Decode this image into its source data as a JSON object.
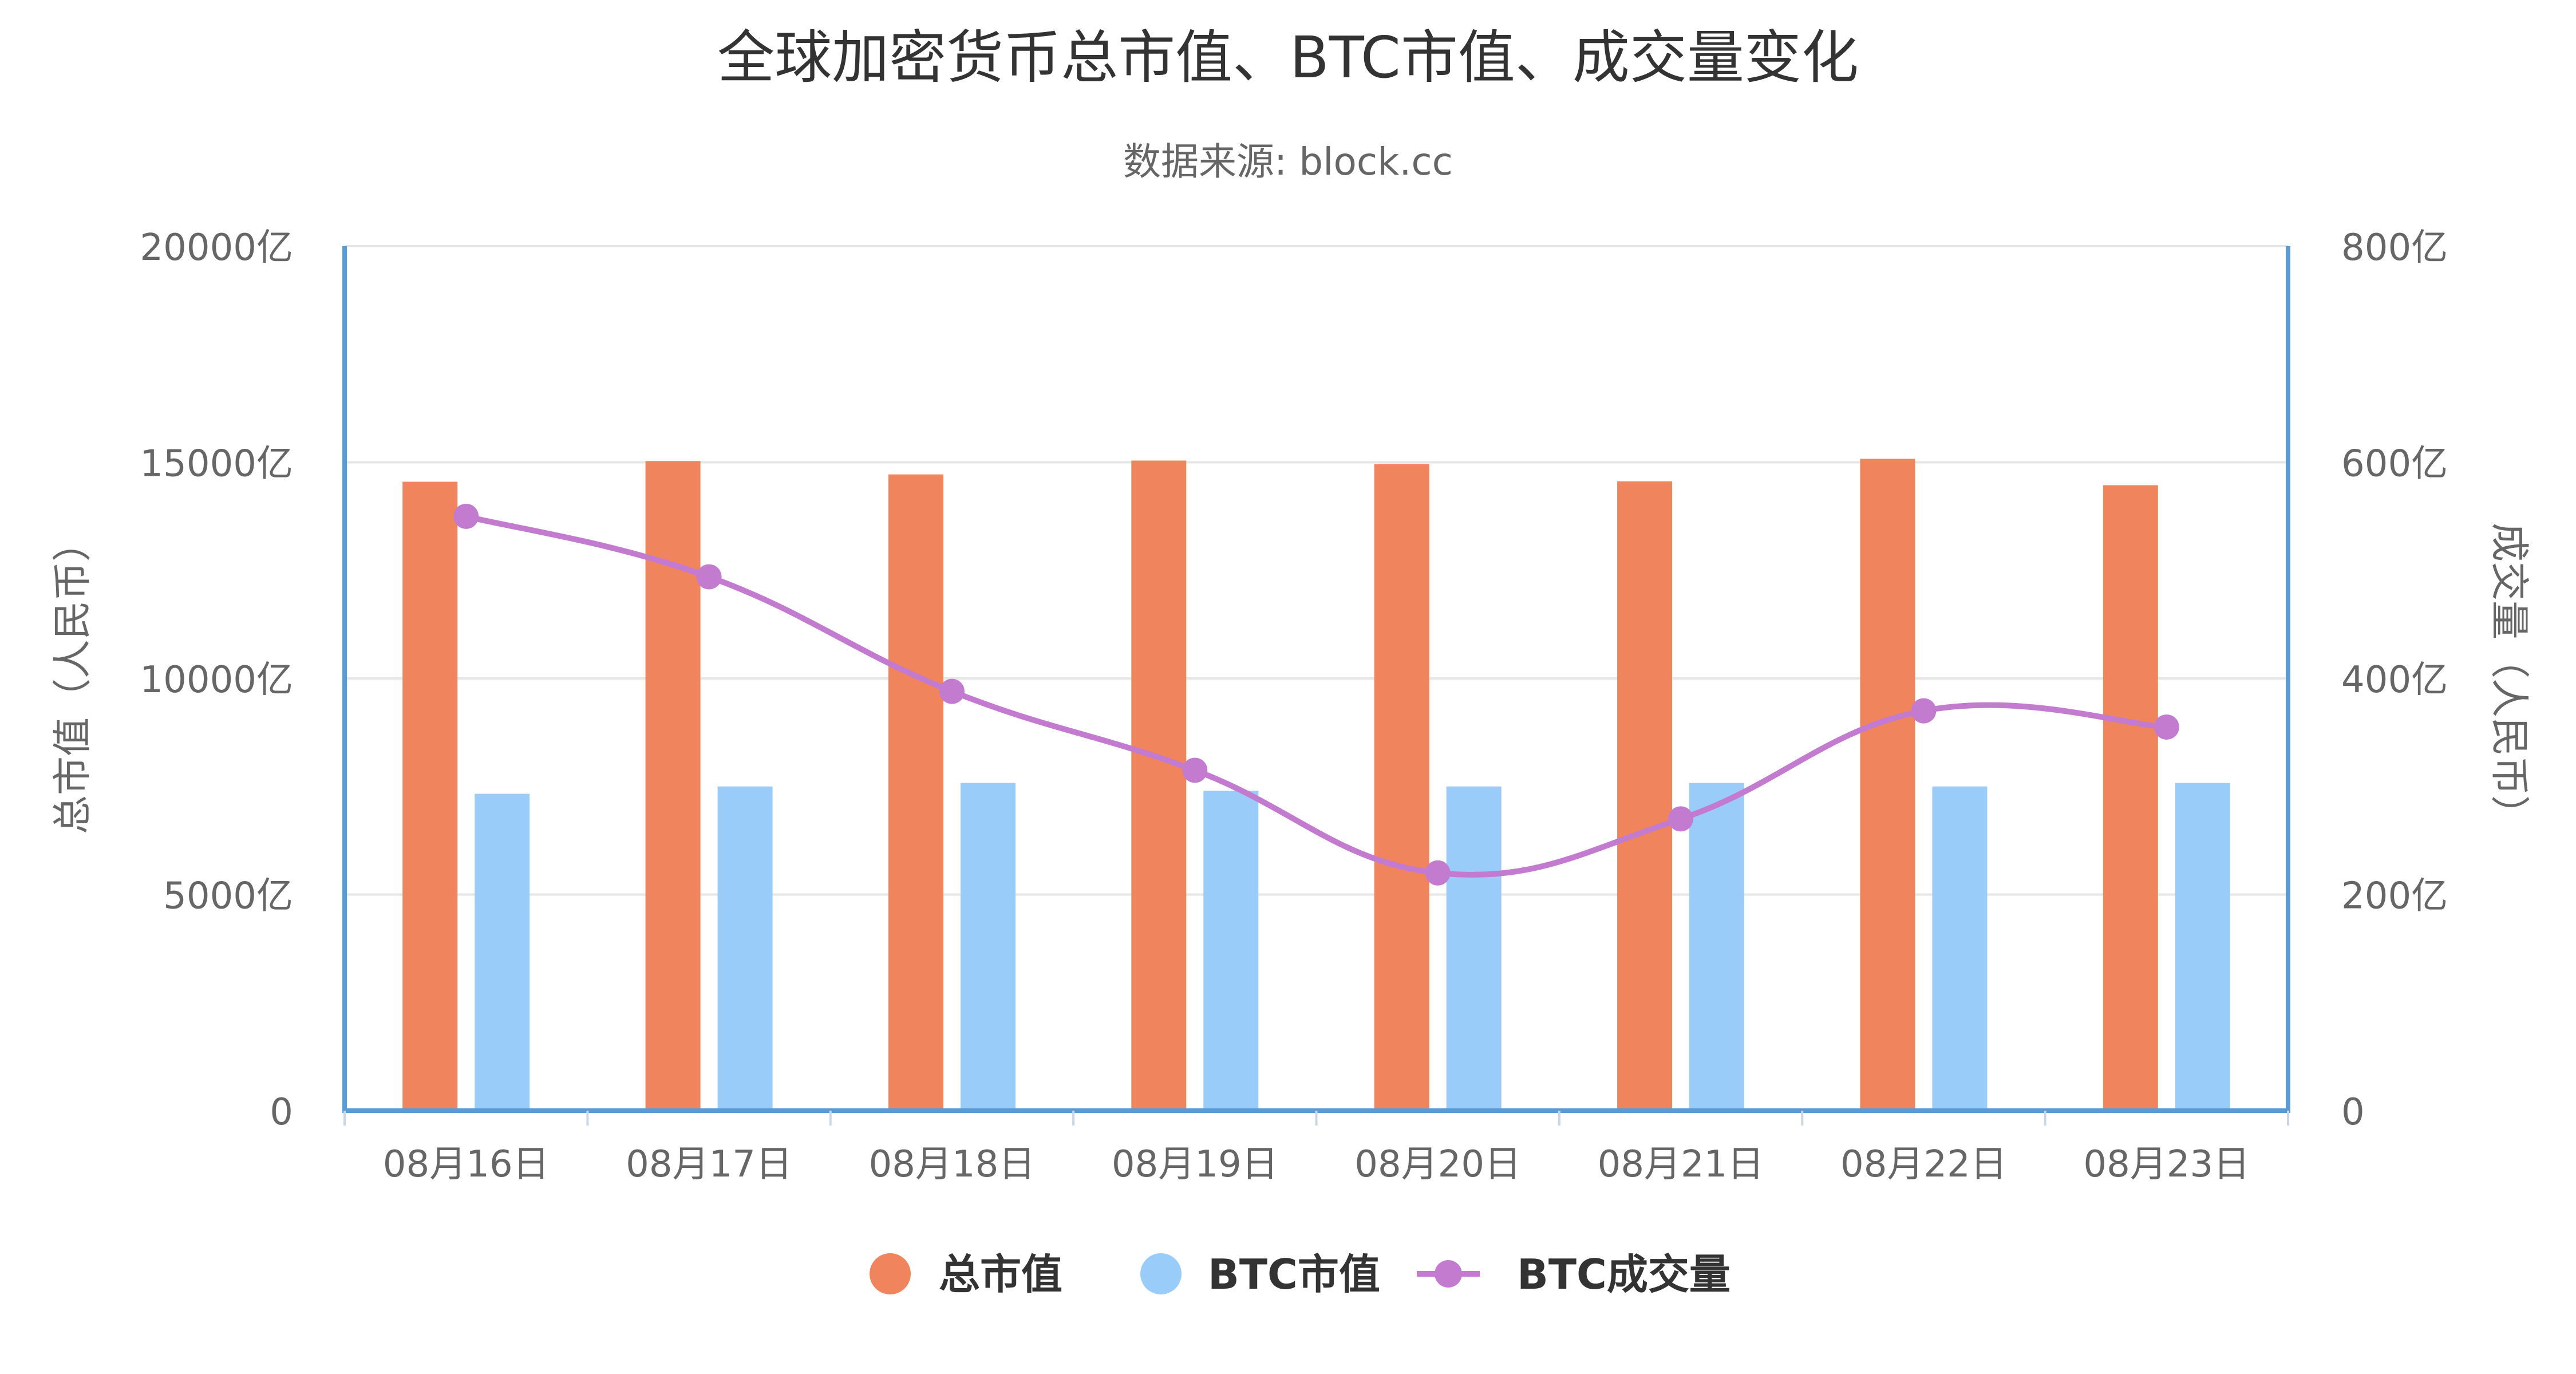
{
  "chart_data": {
    "type": "bar",
    "title": "全球加密货币总市值、BTC市值、成交量变化",
    "subtitle": "数据来源: block.cc",
    "categories": [
      "08月16日",
      "08月17日",
      "08月18日",
      "08月19日",
      "08月20日",
      "08月21日",
      "08月22日",
      "08月23日"
    ],
    "y_left": {
      "label": "总市值（人民币）",
      "ticks": [
        "0",
        "5000亿",
        "10000亿",
        "15000亿",
        "20000亿"
      ],
      "range": [
        0,
        20000
      ]
    },
    "y_right": {
      "label": "成交量（人民币）",
      "ticks": [
        "0",
        "200亿",
        "400亿",
        "600亿",
        "800亿"
      ],
      "range": [
        0,
        800
      ]
    },
    "series": [
      {
        "name": "总市值",
        "type": "bar",
        "axis": "left",
        "color": "#f0845c",
        "values": [
          14550,
          15030,
          14720,
          15040,
          14960,
          14560,
          15080,
          14470
        ]
      },
      {
        "name": "BTC市值",
        "type": "bar",
        "axis": "left",
        "color": "#99ccf8",
        "values": [
          7330,
          7500,
          7580,
          7400,
          7500,
          7580,
          7500,
          7580
        ]
      },
      {
        "name": "BTC成交量",
        "type": "line",
        "axis": "right",
        "color": "#c37bd0",
        "values": [
          550,
          494,
          388,
          315,
          220,
          270,
          370,
          355
        ]
      }
    ],
    "legend": {
      "placement": "bottom-center",
      "items": [
        {
          "label": "总市值",
          "symbol": "circle",
          "color": "#f0845c"
        },
        {
          "label": "BTC市值",
          "symbol": "circle",
          "color": "#99ccf8"
        },
        {
          "label": "BTC成交量",
          "symbol": "line-dot",
          "color": "#c37bd0"
        }
      ]
    },
    "grid": true,
    "axis_color": "#5b9bd5"
  }
}
